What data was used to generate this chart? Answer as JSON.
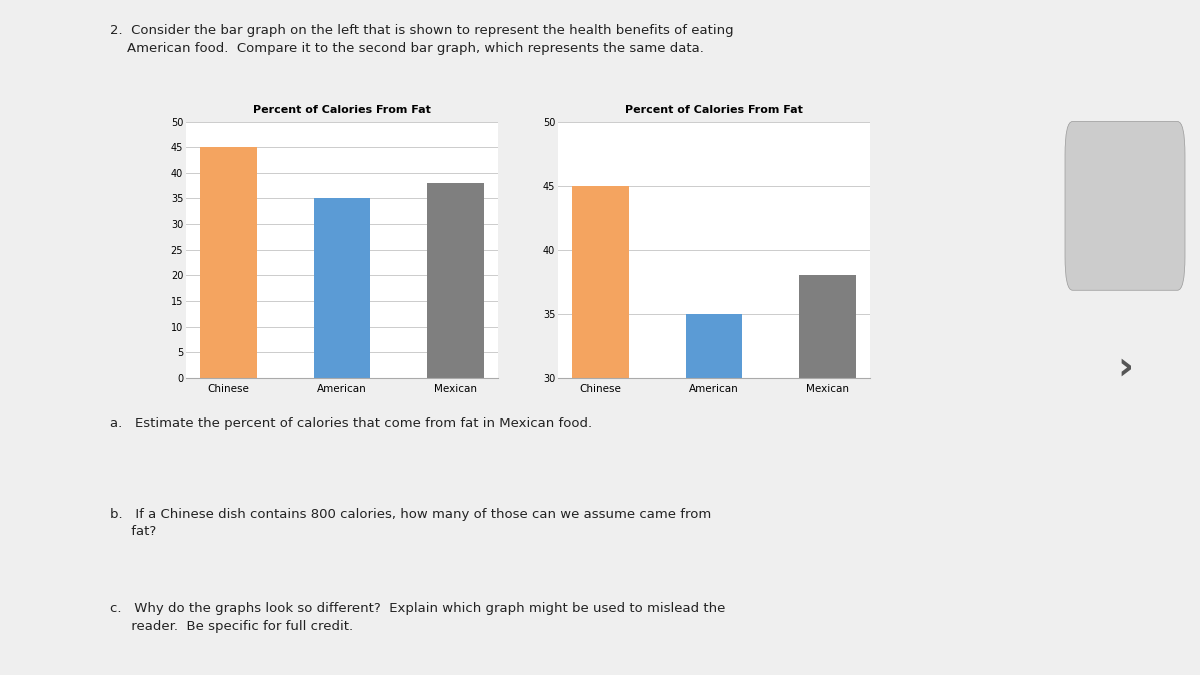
{
  "title": "Percent of Calories From Fat",
  "categories": [
    "Chinese",
    "American",
    "Mexican"
  ],
  "values": [
    45,
    35,
    38
  ],
  "bar_colors": [
    "#F4A460",
    "#5B9BD5",
    "#7F7F7F"
  ],
  "chart1_ylim": [
    0,
    50
  ],
  "chart1_yticks": [
    0,
    5,
    10,
    15,
    20,
    25,
    30,
    35,
    40,
    45,
    50
  ],
  "chart2_ylim": [
    30,
    50
  ],
  "chart2_yticks": [
    30,
    35,
    40,
    45,
    50
  ],
  "bg_color": "#FFFFFF",
  "page_bg": "#EFEFEF",
  "title_fontsize": 8,
  "tick_fontsize": 7,
  "xlabel_fontsize": 7.5,
  "question_fontsize": 9.5
}
